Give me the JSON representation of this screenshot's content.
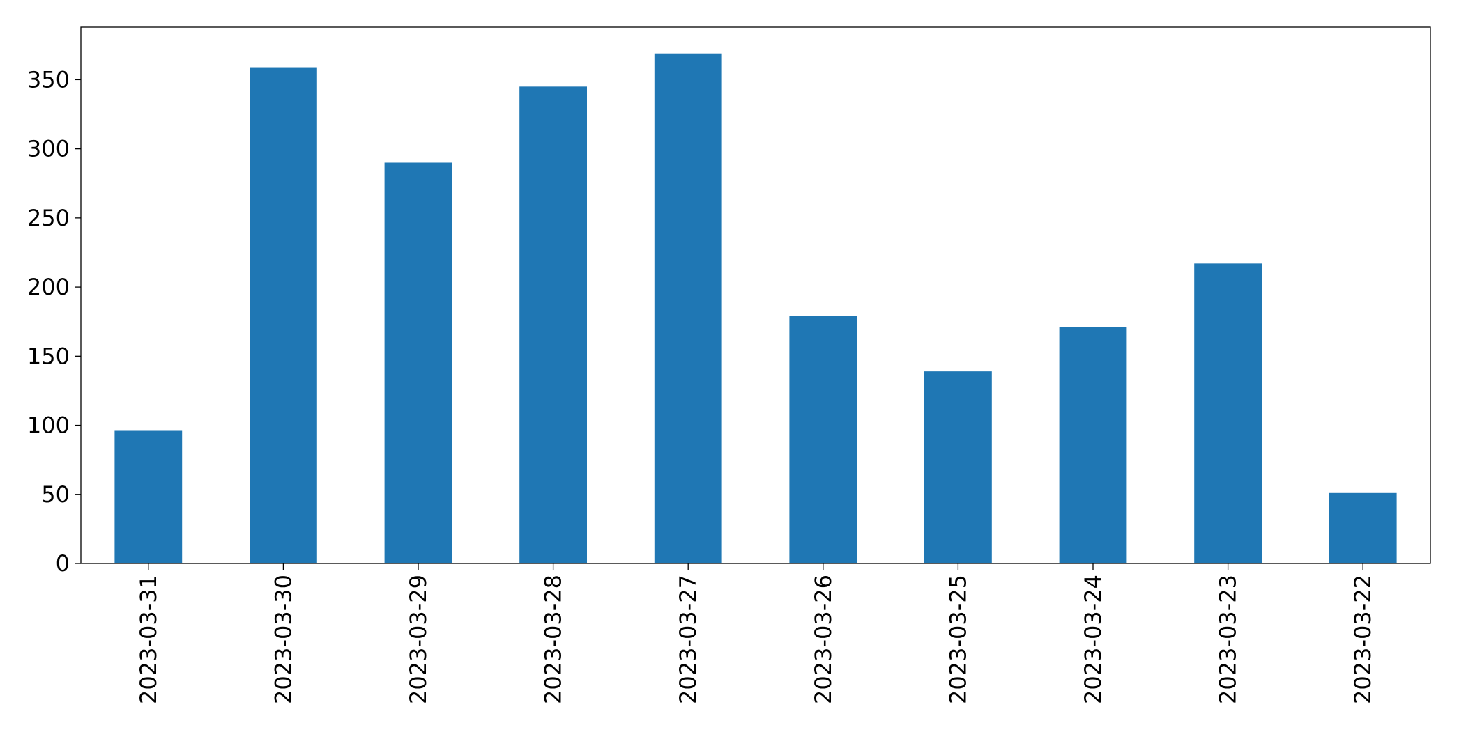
{
  "chart_data": {
    "type": "bar",
    "categories": [
      "2023-03-31",
      "2023-03-30",
      "2023-03-29",
      "2023-03-28",
      "2023-03-27",
      "2023-03-26",
      "2023-03-25",
      "2023-03-24",
      "2023-03-23",
      "2023-03-22"
    ],
    "values": [
      96,
      359,
      290,
      345,
      369,
      179,
      139,
      171,
      217,
      51
    ],
    "color": "#1f77b4",
    "ylim": [
      0,
      388
    ],
    "yticks": [
      0,
      50,
      100,
      150,
      200,
      250,
      300,
      350
    ],
    "grid": false
  }
}
